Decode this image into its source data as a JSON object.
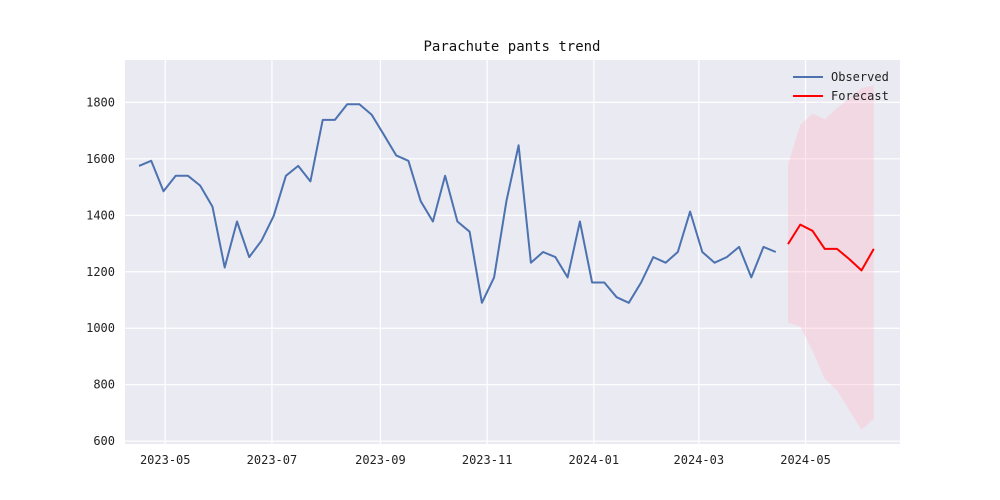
{
  "chart_data": {
    "type": "line",
    "title": "Parachute pants trend",
    "xlabel": "",
    "ylabel": "",
    "xlim": [
      "2023-04-08",
      "2024-06-24"
    ],
    "ylim": [
      590,
      1950
    ],
    "grid": true,
    "legend_position": "top-right",
    "x_ticks": [
      "2023-05",
      "2023-07",
      "2023-09",
      "2023-11",
      "2024-01",
      "2024-03",
      "2024-05"
    ],
    "x_tick_dates": [
      "2023-05-01",
      "2023-07-01",
      "2023-09-01",
      "2023-11-01",
      "2024-01-01",
      "2024-03-01",
      "2024-05-01"
    ],
    "y_ticks": [
      600,
      800,
      1000,
      1200,
      1400,
      1600,
      1800
    ],
    "series": [
      {
        "name": "Observed",
        "color": "#4c72b0",
        "x": [
          "2023-04-16",
          "2023-04-23",
          "2023-04-30",
          "2023-05-07",
          "2023-05-14",
          "2023-05-21",
          "2023-05-28",
          "2023-06-04",
          "2023-06-11",
          "2023-06-18",
          "2023-06-25",
          "2023-07-02",
          "2023-07-09",
          "2023-07-16",
          "2023-07-23",
          "2023-07-30",
          "2023-08-06",
          "2023-08-13",
          "2023-08-20",
          "2023-08-27",
          "2023-09-03",
          "2023-09-10",
          "2023-09-17",
          "2023-09-24",
          "2023-10-01",
          "2023-10-08",
          "2023-10-15",
          "2023-10-22",
          "2023-10-29",
          "2023-11-05",
          "2023-11-12",
          "2023-11-19",
          "2023-11-26",
          "2023-12-03",
          "2023-12-10",
          "2023-12-17",
          "2023-12-24",
          "2023-12-31",
          "2024-01-07",
          "2024-01-14",
          "2024-01-21",
          "2024-01-28",
          "2024-02-04",
          "2024-02-11",
          "2024-02-18",
          "2024-02-25",
          "2024-03-03",
          "2024-03-10",
          "2024-03-17",
          "2024-03-24",
          "2024-03-31",
          "2024-04-07",
          "2024-04-14"
        ],
        "values": [
          1575,
          1593,
          1485,
          1540,
          1540,
          1505,
          1430,
          1215,
          1378,
          1252,
          1310,
          1398,
          1540,
          1575,
          1520,
          1738,
          1738,
          1793,
          1793,
          1756,
          1685,
          1612,
          1593,
          1450,
          1378,
          1540,
          1378,
          1342,
          1090,
          1180,
          1450,
          1648,
          1232,
          1270,
          1252,
          1180,
          1378,
          1162,
          1162,
          1110,
          1090,
          1162,
          1252,
          1232,
          1270,
          1413,
          1270,
          1232,
          1252,
          1288,
          1180,
          1288,
          1270
        ]
      },
      {
        "name": "Forecast",
        "color": "#ff0000",
        "x": [
          "2024-04-21",
          "2024-04-28",
          "2024-05-05",
          "2024-05-12",
          "2024-05-19",
          "2024-05-26",
          "2024-06-02",
          "2024-06-09"
        ],
        "values": [
          1298,
          1367,
          1345,
          1281,
          1281,
          1245,
          1205,
          1281
        ],
        "upper": [
          1580,
          1720,
          1760,
          1740,
          1780,
          1815,
          1850,
          1860
        ],
        "lower": [
          1020,
          1005,
          920,
          820,
          780,
          710,
          640,
          680
        ],
        "interval_color": "#ffb6c8"
      }
    ]
  }
}
